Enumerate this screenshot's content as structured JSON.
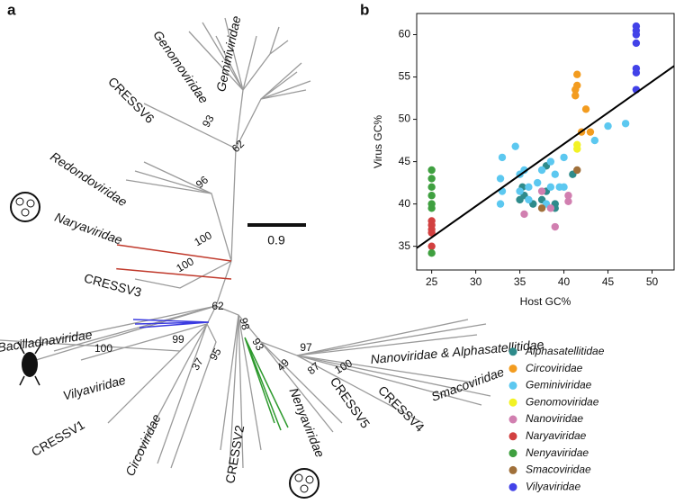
{
  "panel_a": {
    "panel_label": "a",
    "clades": [
      "Genomoviridae",
      "Geminiviridae",
      "CRESSV6",
      "Redondoviridae",
      "Naryaviridae",
      "CRESSV3",
      "Bacilladnaviridae",
      "Vilyaviridae",
      "CRESSV1",
      "Circoviridae",
      "CRESSV2",
      "Nenyaviridae",
      "CRESSV5",
      "CRESSV4",
      "Smacoviridae",
      "Nanoviridae & Alphasatellitidae"
    ],
    "bootstrap": [
      "93",
      "62",
      "96",
      "100",
      "100",
      "62",
      "100",
      "99",
      "37",
      "95",
      "98",
      "93",
      "49",
      "97",
      "87",
      "100"
    ],
    "scale_bar": "0.9"
  },
  "chart_data": {
    "type": "scatter",
    "panel_label": "b",
    "xlabel": "Host GC%",
    "ylabel": "Virus GC%",
    "xlim": [
      23.3,
      52.5
    ],
    "ylim": [
      32.2,
      62.5
    ],
    "xticks": [
      25,
      30,
      35,
      40,
      45,
      50
    ],
    "yticks": [
      35,
      40,
      45,
      50,
      55,
      60
    ],
    "legend": "lower right",
    "series": [
      {
        "name": "Alphasatellitidae",
        "color": "#2e8b8b",
        "x": [
          35,
          35.5,
          36.5,
          37.5,
          38,
          38,
          39,
          39,
          41,
          35.3
        ],
        "y": [
          40.5,
          41,
          40,
          40.5,
          41.5,
          44.5,
          40,
          39.5,
          43.5,
          42
        ]
      },
      {
        "name": "Circoviridae",
        "color": "#f39c1f",
        "x": [
          41.5,
          41.5,
          41.3,
          41.3,
          42.5,
          42,
          43
        ],
        "y": [
          55.3,
          54,
          53.5,
          52.8,
          51.2,
          48.5,
          48.5
        ]
      },
      {
        "name": "Geminiviridae",
        "color": "#5cc8f0",
        "x": [
          33,
          32.8,
          32.8,
          34.5,
          35,
          35.5,
          36,
          36,
          37.5,
          37,
          38.5,
          38,
          38.5,
          39.5,
          39,
          40,
          40,
          43.5,
          45,
          47,
          33,
          35
        ],
        "y": [
          45.5,
          43,
          40,
          46.8,
          43.5,
          44,
          42,
          40.5,
          44,
          42.5,
          42,
          40,
          45,
          42,
          43.5,
          42,
          45.5,
          47.5,
          49.2,
          49.5,
          41.5,
          41.5
        ]
      },
      {
        "name": "Genomoviridae",
        "color": "#f2f224",
        "x": [
          41.5,
          41.5
        ],
        "y": [
          47,
          46.5
        ]
      },
      {
        "name": "Nanoviridae",
        "color": "#d17fb0",
        "x": [
          35.5,
          37.5,
          38.5,
          39,
          40.5,
          40.5
        ],
        "y": [
          38.8,
          41.5,
          39.5,
          37.3,
          41,
          40.3
        ]
      },
      {
        "name": "Naryaviridae",
        "color": "#d24040",
        "x": [
          25,
          25,
          25,
          25,
          25
        ],
        "y": [
          38,
          37.5,
          37,
          36.6,
          35
        ]
      },
      {
        "name": "Nenyaviridae",
        "color": "#3fa040",
        "x": [
          25,
          25,
          25,
          25,
          25,
          25,
          25
        ],
        "y": [
          44,
          43,
          42,
          41,
          40,
          39.5,
          34.2
        ]
      },
      {
        "name": "Smacoviridae",
        "color": "#a0703a",
        "x": [
          41.5,
          37.5
        ],
        "y": [
          44,
          39.5
        ]
      },
      {
        "name": "Vilyaviridae",
        "color": "#4242e8",
        "x": [
          48.2,
          48.2,
          48.2,
          48.2,
          48.2,
          48.2,
          48.2
        ],
        "y": [
          61,
          60.5,
          60,
          59,
          56,
          55.5,
          53.5
        ]
      }
    ],
    "fit_line": {
      "color": "#000000",
      "x": [
        23.3,
        52.5
      ],
      "y": [
        34.8,
        56.3
      ]
    }
  }
}
